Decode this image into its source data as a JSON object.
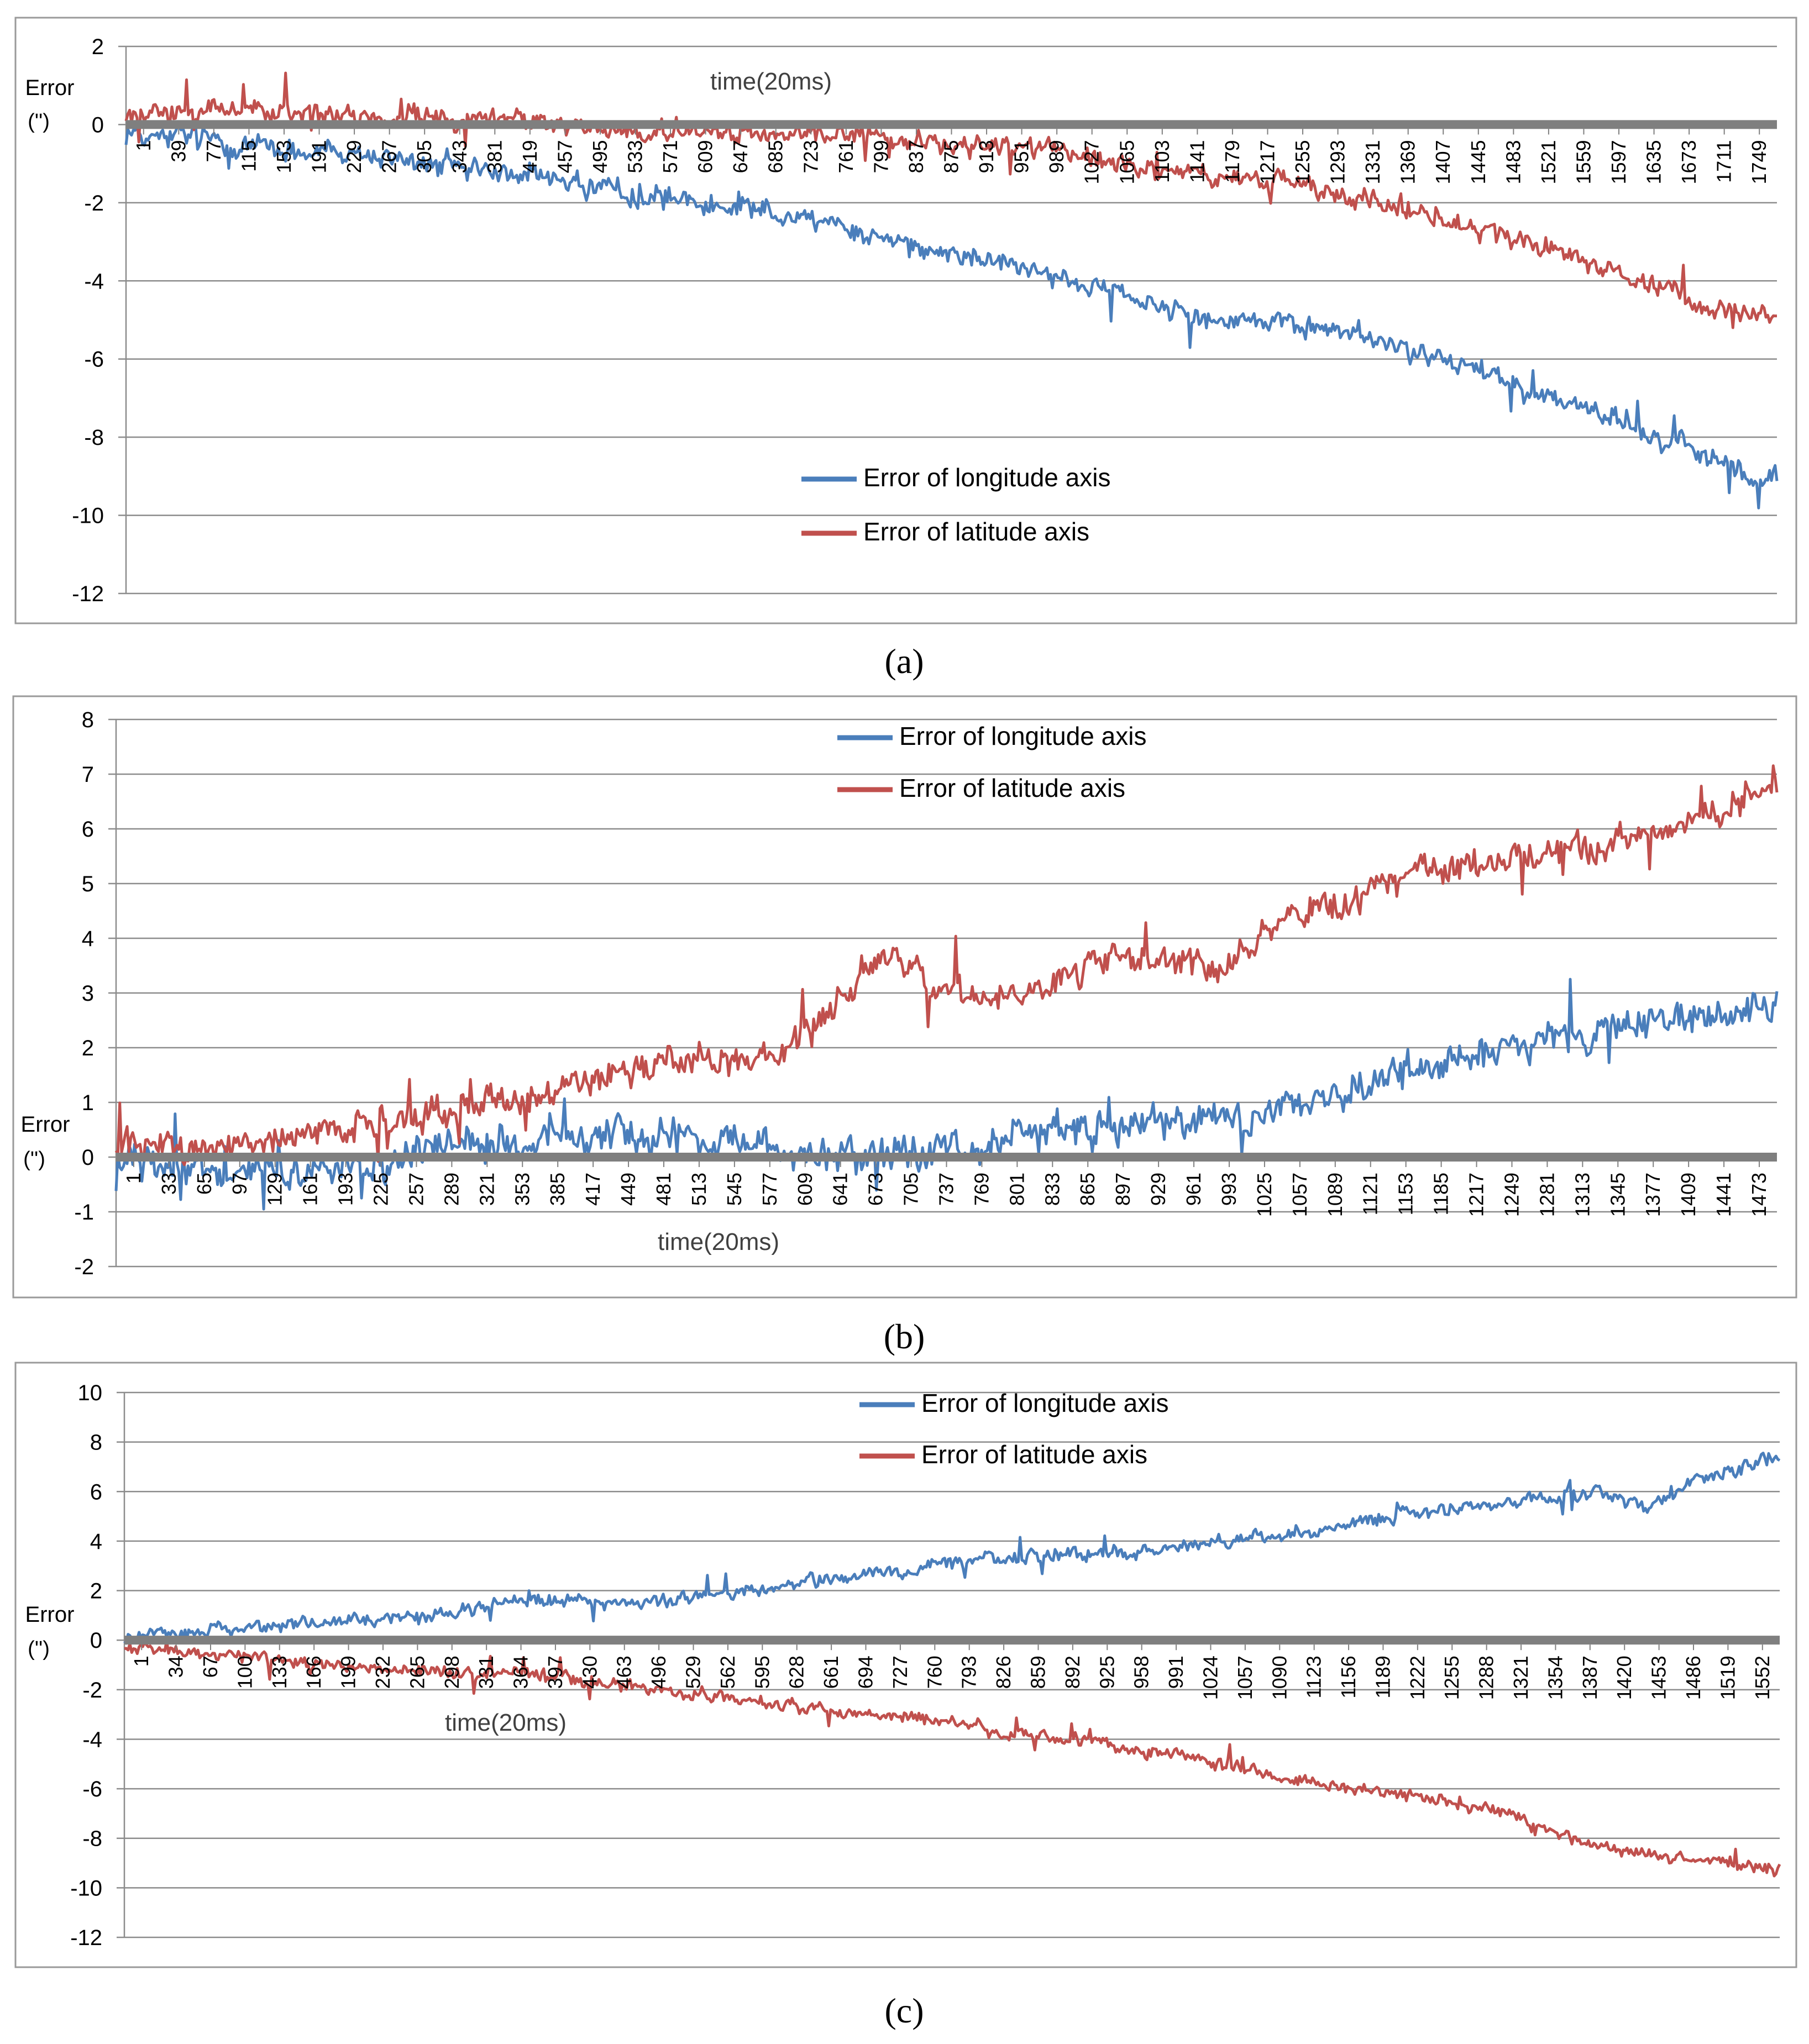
{
  "panels": [
    {
      "caption": "(a)",
      "chart_data": {
        "type": "line",
        "xlabel": "time(20ms)",
        "ylabel_line1": "Error",
        "ylabel_line2": "('')",
        "ylim": [
          -12,
          2
        ],
        "yticks": [
          2,
          0,
          -2,
          -4,
          -6,
          -8,
          -10,
          -12
        ],
        "xlim": [
          1,
          1780
        ],
        "xticks": [
          "1",
          "39",
          "77",
          "115",
          "153",
          "191",
          "229",
          "267",
          "305",
          "343",
          "381",
          "419",
          "457",
          "495",
          "533",
          "571",
          "609",
          "647",
          "685",
          "723",
          "761",
          "799",
          "837",
          "875",
          "913",
          "951",
          "989",
          "1027",
          "1065",
          "1103",
          "1141",
          "1179",
          "1217",
          "1255",
          "1293",
          "1331",
          "1369",
          "1407",
          "1445",
          "1483",
          "1521",
          "1559",
          "1597",
          "1635",
          "1673",
          "1711",
          "1749"
        ],
        "legend_position": "lower-center",
        "grid": true,
        "series": [
          {
            "name": "Error of longitude axis",
            "color": "#4a7ebb",
            "points": [
              [
                1,
                -0.2
              ],
              [
                60,
                -0.3
              ],
              [
                150,
                -0.6
              ],
              [
                250,
                -0.8
              ],
              [
                350,
                -1.1
              ],
              [
                450,
                -1.3
              ],
              [
                550,
                -1.8
              ],
              [
                650,
                -2.0
              ],
              [
                720,
                -2.3
              ],
              [
                800,
                -2.8
              ],
              [
                900,
                -3.3
              ],
              [
                1000,
                -3.9
              ],
              [
                1100,
                -4.5
              ],
              [
                1200,
                -5.0
              ],
              [
                1300,
                -5.2
              ],
              [
                1400,
                -5.9
              ],
              [
                1500,
                -6.7
              ],
              [
                1600,
                -7.5
              ],
              [
                1700,
                -8.4
              ],
              [
                1780,
                -9.1
              ]
            ],
            "noise": 0.35
          },
          {
            "name": "Error of latitude axis",
            "color": "#c0504d",
            "points": [
              [
                1,
                0.2
              ],
              [
                100,
                0.4
              ],
              [
                250,
                0.2
              ],
              [
                400,
                0.2
              ],
              [
                550,
                -0.2
              ],
              [
                700,
                -0.2
              ],
              [
                850,
                -0.4
              ],
              [
                1000,
                -0.7
              ],
              [
                1100,
                -1.1
              ],
              [
                1250,
                -1.5
              ],
              [
                1400,
                -2.2
              ],
              [
                1500,
                -3.0
              ],
              [
                1600,
                -3.7
              ],
              [
                1700,
                -4.6
              ],
              [
                1780,
                -5.0
              ]
            ],
            "noise": 0.32
          }
        ]
      }
    },
    {
      "caption": "(b)",
      "chart_data": {
        "type": "line",
        "xlabel": "time(20ms)",
        "ylabel_line1": "Error",
        "ylabel_line2": "('')",
        "ylim": [
          -2,
          8
        ],
        "yticks": [
          8,
          7,
          6,
          5,
          4,
          3,
          2,
          1,
          0,
          -1,
          -2
        ],
        "xlim": [
          1,
          1500
        ],
        "xticks": [
          "1",
          "33",
          "65",
          "97",
          "129",
          "161",
          "193",
          "225",
          "257",
          "289",
          "321",
          "353",
          "385",
          "417",
          "449",
          "481",
          "513",
          "545",
          "577",
          "609",
          "641",
          "673",
          "705",
          "737",
          "769",
          "801",
          "833",
          "865",
          "897",
          "929",
          "961",
          "993",
          "1025",
          "1057",
          "1089",
          "1121",
          "1153",
          "1185",
          "1217",
          "1249",
          "1281",
          "1313",
          "1345",
          "1377",
          "1409",
          "1441",
          "1473"
        ],
        "legend_position": "top-center",
        "grid": true,
        "series": [
          {
            "name": "Error of longitude axis",
            "color": "#4a7ebb",
            "points": [
              [
                1,
                0.0
              ],
              [
                100,
                -0.3
              ],
              [
                200,
                -0.2
              ],
              [
                300,
                0.2
              ],
              [
                400,
                0.3
              ],
              [
                500,
                0.5
              ],
              [
                600,
                0.2
              ],
              [
                700,
                0.0
              ],
              [
                800,
                0.3
              ],
              [
                900,
                0.6
              ],
              [
                1000,
                0.7
              ],
              [
                1100,
                1.2
              ],
              [
                1200,
                1.7
              ],
              [
                1300,
                2.2
              ],
              [
                1400,
                2.5
              ],
              [
                1500,
                2.8
              ]
            ],
            "noise": 0.38
          },
          {
            "name": "Error of latitude axis",
            "color": "#c0504d",
            "points": [
              [
                1,
                0.2
              ],
              [
                100,
                0.2
              ],
              [
                200,
                0.5
              ],
              [
                300,
                0.9
              ],
              [
                400,
                1.2
              ],
              [
                500,
                1.8
              ],
              [
                600,
                1.8
              ],
              [
                690,
                3.6
              ],
              [
                750,
                3.0
              ],
              [
                800,
                2.9
              ],
              [
                900,
                3.7
              ],
              [
                1000,
                3.5
              ],
              [
                1050,
                4.3
              ],
              [
                1150,
                5.0
              ],
              [
                1250,
                5.5
              ],
              [
                1350,
                5.7
              ],
              [
                1450,
                6.4
              ],
              [
                1500,
                7.0
              ]
            ],
            "noise": 0.35
          }
        ]
      }
    },
    {
      "caption": "(c)",
      "chart_data": {
        "type": "line",
        "xlabel": "time(20ms)",
        "ylabel_line1": "Error",
        "ylabel_line2": "('')",
        "ylim": [
          -12,
          10
        ],
        "yticks": [
          10,
          8,
          6,
          4,
          2,
          0,
          -2,
          -4,
          -6,
          -8,
          -10,
          -12
        ],
        "xlim": [
          1,
          1570
        ],
        "xticks": [
          "1",
          "34",
          "67",
          "100",
          "133",
          "166",
          "199",
          "232",
          "265",
          "298",
          "331",
          "364",
          "397",
          "430",
          "463",
          "496",
          "529",
          "562",
          "595",
          "628",
          "661",
          "694",
          "727",
          "760",
          "793",
          "826",
          "859",
          "892",
          "925",
          "958",
          "991",
          "1024",
          "1057",
          "1090",
          "1123",
          "1156",
          "1189",
          "1222",
          "1255",
          "1288",
          "1321",
          "1354",
          "1387",
          "1420",
          "1453",
          "1486",
          "1519",
          "1552"
        ],
        "legend_position": "top-center",
        "grid": true,
        "series": [
          {
            "name": "Error of longitude axis",
            "color": "#4a7ebb",
            "points": [
              [
                1,
                0.2
              ],
              [
                100,
                0.4
              ],
              [
                200,
                0.7
              ],
              [
                300,
                1.1
              ],
              [
                400,
                1.6
              ],
              [
                500,
                1.5
              ],
              [
                600,
                2.0
              ],
              [
                700,
                2.6
              ],
              [
                800,
                3.2
              ],
              [
                900,
                3.5
              ],
              [
                1000,
                3.7
              ],
              [
                1100,
                4.3
              ],
              [
                1200,
                5.0
              ],
              [
                1300,
                5.5
              ],
              [
                1400,
                6.0
              ],
              [
                1450,
                5.4
              ],
              [
                1500,
                6.6
              ],
              [
                1570,
                7.4
              ]
            ],
            "noise": 0.35
          },
          {
            "name": "Error of latitude axis",
            "color": "#c0504d",
            "points": [
              [
                1,
                -0.3
              ],
              [
                100,
                -0.6
              ],
              [
                200,
                -1.0
              ],
              [
                300,
                -1.3
              ],
              [
                400,
                -1.4
              ],
              [
                500,
                -2.0
              ],
              [
                600,
                -2.5
              ],
              [
                700,
                -2.9
              ],
              [
                800,
                -3.4
              ],
              [
                900,
                -4.1
              ],
              [
                1000,
                -4.6
              ],
              [
                1100,
                -5.6
              ],
              [
                1200,
                -6.2
              ],
              [
                1300,
                -6.8
              ],
              [
                1350,
                -7.6
              ],
              [
                1400,
                -8.4
              ],
              [
                1500,
                -8.9
              ],
              [
                1570,
                -9.2
              ]
            ],
            "noise": 0.3
          }
        ]
      }
    }
  ]
}
